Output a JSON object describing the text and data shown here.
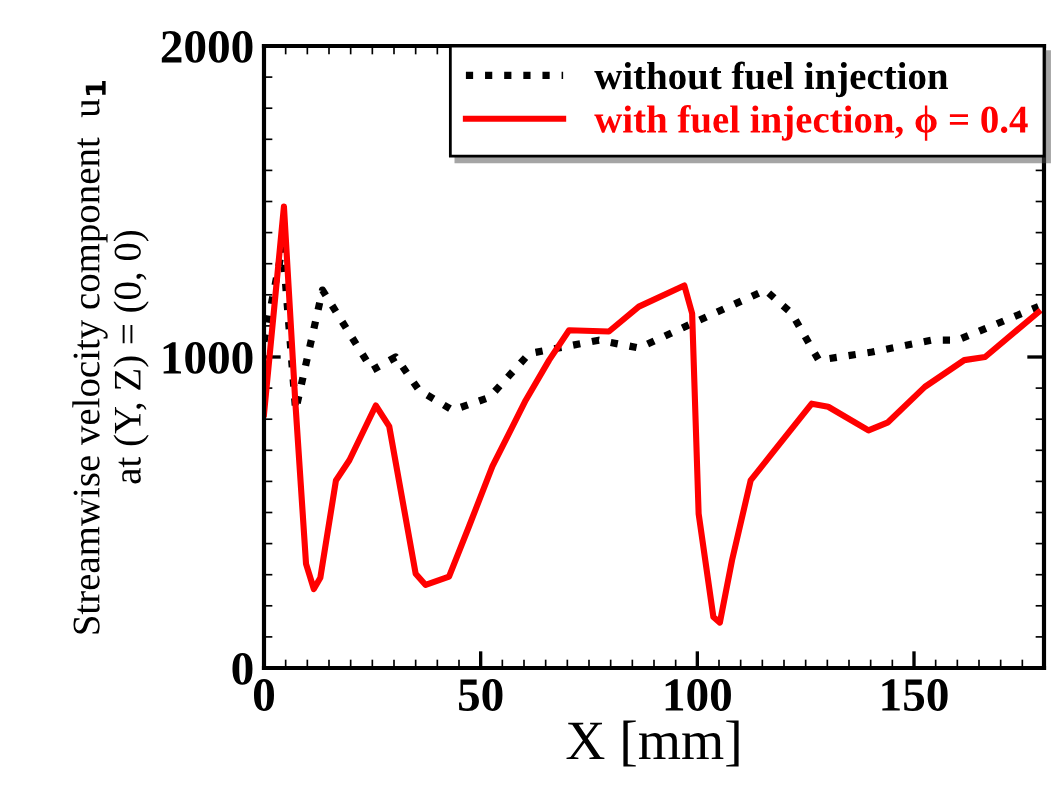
{
  "chart_data": {
    "type": "line",
    "xlabel": "X [mm]",
    "ylabel": "Streamwise velocity component  u$_{1}$\nat (Y, Z) = (0, 0)",
    "xlim": [
      0,
      180
    ],
    "xticks": [
      0,
      50,
      100,
      150
    ],
    "ylim": [
      0,
      2000
    ],
    "yticks": [
      0,
      1000,
      2000
    ],
    "grid": false,
    "legend": "top right",
    "marker": "none",
    "series": [
      {
        "name": "without fuel injection",
        "color": "#000000",
        "line_style": "dotted",
        "x": [
          0,
          4.3,
          7.3,
          13.5,
          25,
          30.4,
          35.8,
          43.5,
          52,
          61.2,
          77.3,
          86.5,
          98.8,
          115.7,
          121.8,
          128,
          140.3,
          154,
          160,
          178.7
        ],
        "values": [
          1050,
          1355,
          829,
          1215,
          958,
          1000,
          893,
          829,
          870,
          1011,
          1054,
          1029,
          1108,
          1215,
          1140,
          990,
          1016,
          1054,
          1054,
          1162
        ]
      },
      {
        "name": "with fuel injection, ϕ = 0.4",
        "color": "#ff0000",
        "line_style": "solid",
        "x": [
          0,
          4.6,
          7.2,
          9.7,
          11.5,
          13,
          16.6,
          19.7,
          25.8,
          28.9,
          35,
          37.3,
          42.7,
          47.3,
          52.7,
          60.4,
          65.8,
          70.4,
          79.6,
          86.5,
          97,
          98.8,
          100.3,
          103.7,
          105.2,
          108,
          112.3,
          117.2,
          126.4,
          130.2,
          139.5,
          144,
          152.5,
          161.6,
          166.4,
          178.7
        ],
        "values": [
          816,
          1484,
          861,
          335,
          254,
          290,
          603,
          668,
          844,
          777,
          303,
          267,
          294,
          455,
          648,
          861,
          990,
          1086,
          1082,
          1162,
          1230,
          1140,
          496,
          164,
          146,
          346,
          603,
          689,
          850,
          840,
          764,
          790,
          904,
          990,
          1000,
          1144
        ]
      }
    ]
  }
}
